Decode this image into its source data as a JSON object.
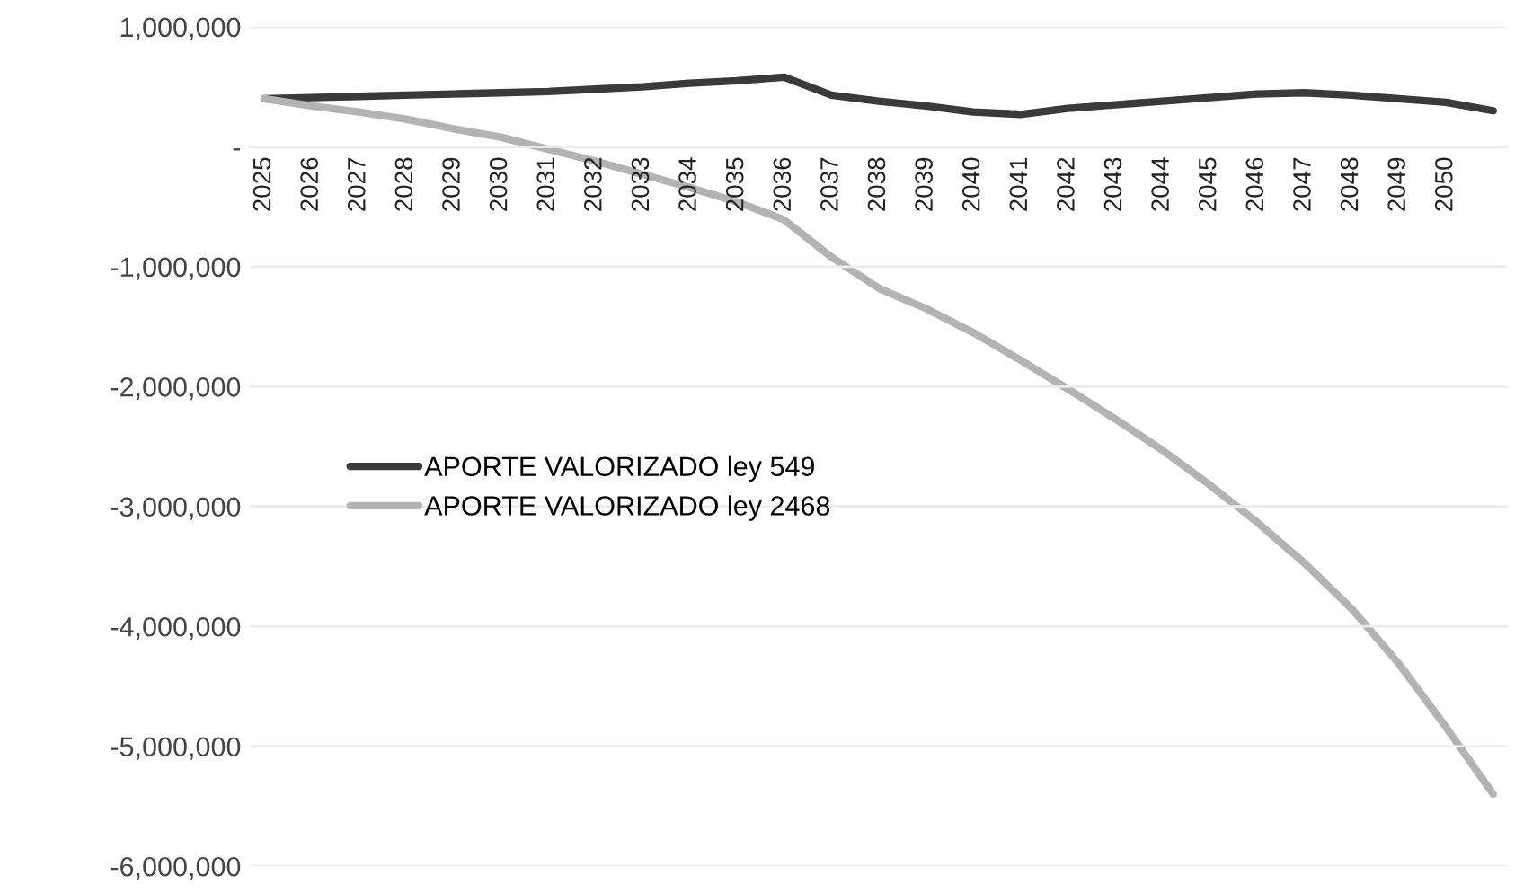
{
  "chart_data": {
    "type": "line",
    "categories": [
      "2025",
      "2026",
      "2027",
      "2028",
      "2029",
      "2030",
      "2031",
      "2032",
      "2033",
      "2034",
      "2035",
      "2036",
      "2037",
      "2038",
      "2039",
      "2040",
      "2041",
      "2042",
      "2043",
      "2044",
      "2045",
      "2046",
      "2047",
      "2048",
      "2049",
      "2050",
      null
    ],
    "series": [
      {
        "name": "APORTE VALORIZADO ley 549",
        "color": "#3a3a3a",
        "values": [
          400000,
          410000,
          420000,
          430000,
          440000,
          450000,
          460000,
          480000,
          500000,
          530000,
          550000,
          580000,
          430000,
          380000,
          340000,
          290000,
          270000,
          320000,
          350000,
          380000,
          410000,
          440000,
          450000,
          430000,
          400000,
          370000,
          300000
        ]
      },
      {
        "name": "APORTE VALORIZADO ley 2468",
        "color": "#b3b3b3",
        "values": [
          400000,
          340000,
          290000,
          230000,
          150000,
          80000,
          -20000,
          -120000,
          -230000,
          -340000,
          -460000,
          -610000,
          -920000,
          -1180000,
          -1350000,
          -1550000,
          -1780000,
          -2020000,
          -2270000,
          -2530000,
          -2820000,
          -3130000,
          -3470000,
          -3850000,
          -4310000,
          -4840000,
          -5400000
        ]
      }
    ],
    "ylim": [
      -6000000,
      1000000
    ],
    "yticks": [
      {
        "value": 1000000,
        "label": "1,000,000"
      },
      {
        "value": 0,
        "label": "-"
      },
      {
        "value": -1000000,
        "label": "-1,000,000"
      },
      {
        "value": -2000000,
        "label": "-2,000,000"
      },
      {
        "value": -3000000,
        "label": "-3,000,000"
      },
      {
        "value": -4000000,
        "label": "-4,000,000"
      },
      {
        "value": -5000000,
        "label": "-5,000,000"
      },
      {
        "value": -6000000,
        "label": "-6,000,000"
      }
    ],
    "grid": "y",
    "legend": "left",
    "marker": "none",
    "line_style": "solid"
  }
}
